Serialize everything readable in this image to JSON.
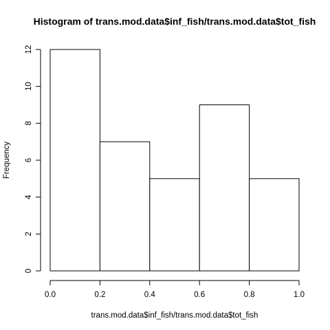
{
  "chart_data": {
    "type": "bar",
    "subtype": "histogram",
    "title": "Histogram of trans.mod.data$inf_fish/trans.mod.data$tot_fish",
    "xlabel": "trans.mod.data$inf_fish/trans.mod.data$tot_fish",
    "ylabel": "Frequency",
    "bins": [
      {
        "from": 0.0,
        "to": 0.2,
        "count": 12
      },
      {
        "from": 0.2,
        "to": 0.4,
        "count": 7
      },
      {
        "from": 0.4,
        "to": 0.6,
        "count": 5
      },
      {
        "from": 0.6,
        "to": 0.8,
        "count": 9
      },
      {
        "from": 0.8,
        "to": 1.0,
        "count": 5
      }
    ],
    "xlim": [
      0.0,
      1.0
    ],
    "ylim": [
      0,
      12
    ],
    "x_ticks": [
      "0.0",
      "0.2",
      "0.4",
      "0.6",
      "0.8",
      "1.0"
    ],
    "y_ticks": [
      "0",
      "2",
      "4",
      "6",
      "8",
      "10",
      "12"
    ],
    "grid": false,
    "legend": "none",
    "bar_fill": "#ffffff",
    "bar_stroke": "#000000"
  }
}
